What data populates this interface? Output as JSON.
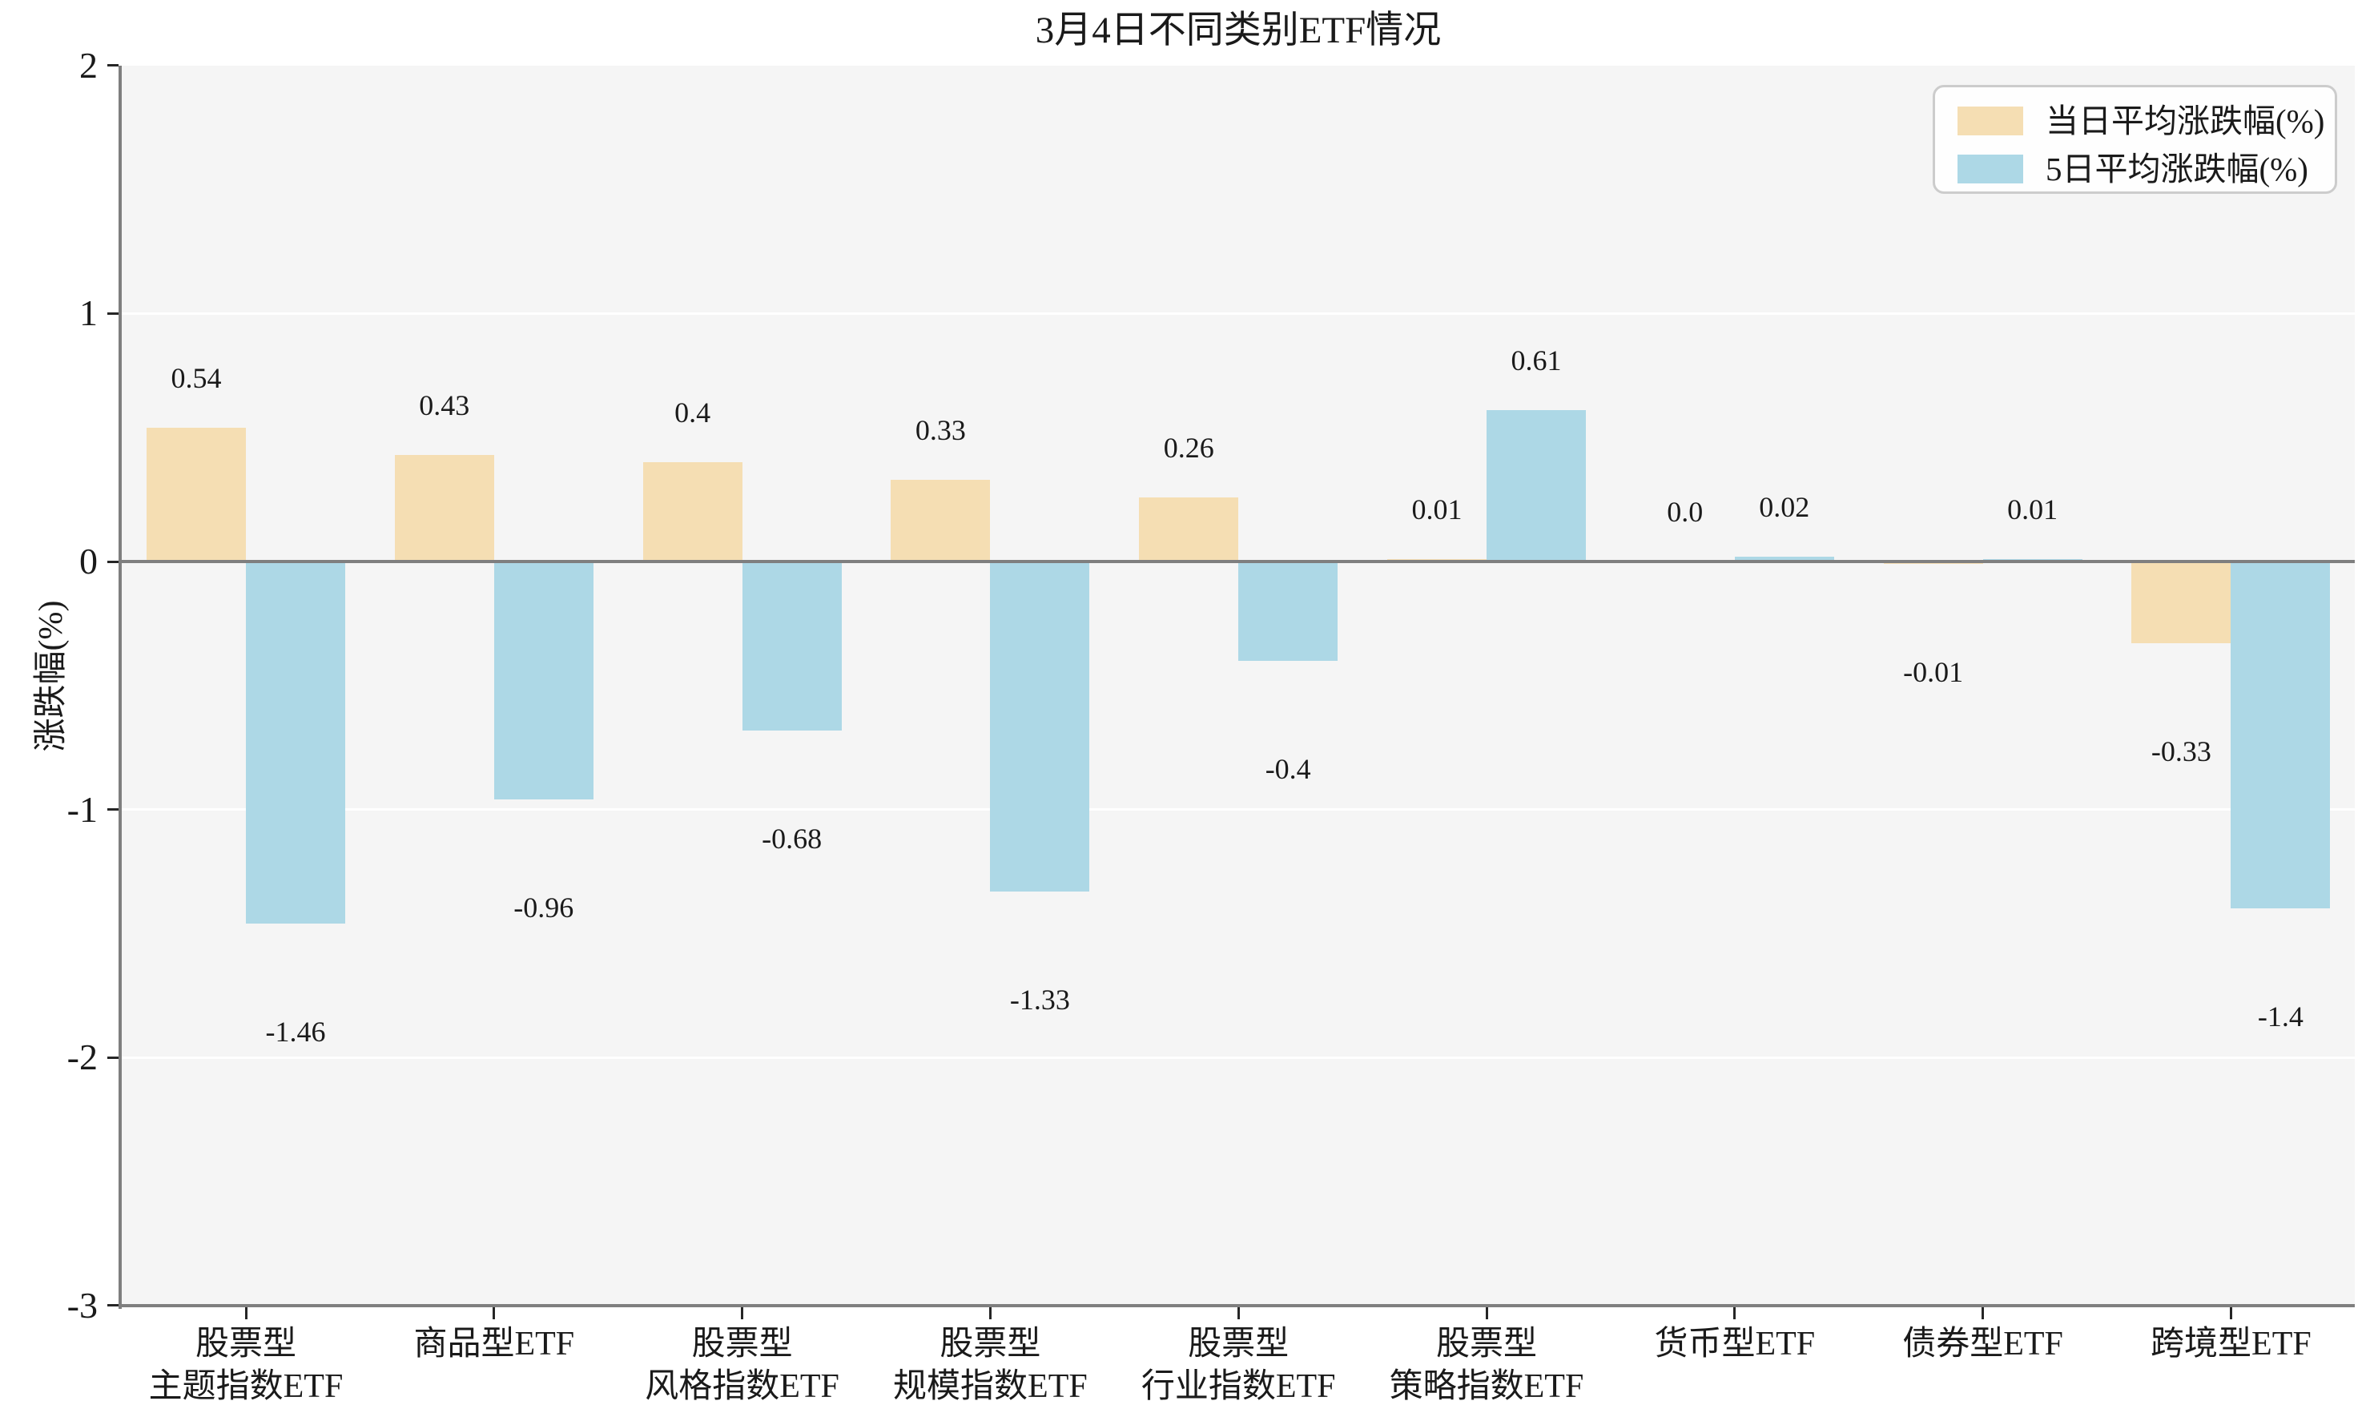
{
  "chart_data": {
    "type": "bar",
    "title": "3月4日不同类别ETF情况",
    "xlabel": "",
    "ylabel": "涨跌幅(%)",
    "ylim": [
      -3,
      2
    ],
    "yticks": [
      "2",
      "1",
      "0",
      "-1",
      "-2",
      "-3"
    ],
    "grid": true,
    "legend_position": "upper right",
    "categories": [
      [
        "股票型",
        "主题指数ETF"
      ],
      [
        "商品型ETF"
      ],
      [
        "股票型",
        "风格指数ETF"
      ],
      [
        "股票型",
        "规模指数ETF"
      ],
      [
        "股票型",
        "行业指数ETF"
      ],
      [
        "股票型",
        "策略指数ETF"
      ],
      [
        "货币型ETF"
      ],
      [
        "债券型ETF"
      ],
      [
        "跨境型ETF"
      ]
    ],
    "series": [
      {
        "name": "当日平均涨跌幅(%)",
        "color": "#F5DEB3",
        "values": [
          0.54,
          0.43,
          0.4,
          0.33,
          0.26,
          0.01,
          0.0,
          -0.01,
          -0.33
        ],
        "labels": [
          "0.54",
          "0.43",
          "0.4",
          "0.33",
          "0.26",
          "0.01",
          "0.0",
          "-0.01",
          "-0.33"
        ]
      },
      {
        "name": "5日平均涨跌幅(%)",
        "color": "#ADD8E6",
        "values": [
          -1.46,
          -0.96,
          -0.68,
          -1.33,
          -0.4,
          0.61,
          0.02,
          0.01,
          -1.4
        ],
        "labels": [
          "-1.46",
          "-0.96",
          "-0.68",
          "-1.33",
          "-0.4",
          "0.61",
          "0.02",
          "0.01",
          "-1.4"
        ]
      }
    ],
    "colors": {
      "plot_background": "#f5f5f5",
      "figure_background": "#ffffff",
      "gridline": "#ffffff",
      "axis_line": "#7f7f7f",
      "tick": "#262626",
      "text": "#1a1a1a"
    }
  }
}
